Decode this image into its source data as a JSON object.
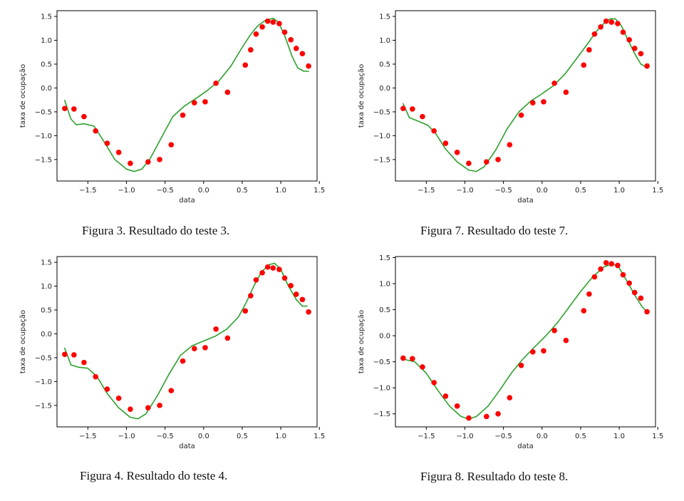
{
  "chart_data": [
    {
      "id": "fig3",
      "type": "scatter",
      "title": "",
      "xlabel": "data",
      "ylabel": "taxa de ocupação",
      "xlim": [
        -1.9,
        1.47
      ],
      "ylim": [
        -1.95,
        1.62
      ],
      "xticks": [
        -1.5,
        -1.0,
        -0.5,
        0.0,
        0.5,
        1.0,
        1.5
      ],
      "xtick_labels": [
        "−1.5",
        "−1.0",
        "−0.5",
        "0.0",
        "0.5",
        "1.0",
        "1.5"
      ],
      "yticks": [
        -1.5,
        -1.0,
        -0.5,
        0.0,
        0.5,
        1.0,
        1.5
      ],
      "ytick_labels": [
        "−1.5",
        "−1.0",
        "−0.5",
        "0.0",
        "0.5",
        "1.0",
        "1.5"
      ],
      "grid": false,
      "series": [
        {
          "kind": "points",
          "color": "#ff0000",
          "x": [
            -1.8,
            -1.68,
            -1.55,
            -1.4,
            -1.25,
            -1.1,
            -0.95,
            -0.72,
            -0.57,
            -0.42,
            -0.27,
            -0.12,
            0.02,
            0.16,
            0.31,
            0.54,
            0.61,
            0.68,
            0.76,
            0.83,
            0.9,
            0.98,
            1.05,
            1.13,
            1.2,
            1.28,
            1.36
          ],
          "y": [
            -0.43,
            -0.44,
            -0.6,
            -0.9,
            -1.16,
            -1.35,
            -1.58,
            -1.55,
            -1.5,
            -1.19,
            -0.57,
            -0.31,
            -0.29,
            0.1,
            -0.09,
            0.48,
            0.8,
            1.13,
            1.28,
            1.4,
            1.38,
            1.35,
            1.17,
            1.01,
            0.83,
            0.72,
            0.46
          ]
        },
        {
          "kind": "line",
          "color": "#2ca02c",
          "x": [
            -1.8,
            -1.72,
            -1.65,
            -1.55,
            -1.42,
            -1.3,
            -1.15,
            -1.0,
            -0.9,
            -0.8,
            -0.7,
            -0.55,
            -0.4,
            -0.25,
            -0.1,
            0.05,
            0.2,
            0.35,
            0.5,
            0.6,
            0.7,
            0.8,
            0.9,
            0.97,
            1.05,
            1.15,
            1.22,
            1.3,
            1.36
          ],
          "y": [
            -0.26,
            -0.65,
            -0.77,
            -0.75,
            -0.8,
            -1.1,
            -1.5,
            -1.7,
            -1.75,
            -1.7,
            -1.5,
            -1.05,
            -0.6,
            -0.38,
            -0.22,
            -0.05,
            0.15,
            0.45,
            0.85,
            1.1,
            1.3,
            1.42,
            1.46,
            1.38,
            1.1,
            0.65,
            0.42,
            0.35,
            0.35
          ]
        }
      ]
    },
    {
      "id": "fig7",
      "type": "scatter",
      "title": "",
      "xlabel": "data",
      "ylabel": "taxa de ocupação",
      "xlim": [
        -1.9,
        1.47
      ],
      "ylim": [
        -1.95,
        1.62
      ],
      "xticks": [
        -1.5,
        -1.0,
        -0.5,
        0.0,
        0.5,
        1.0,
        1.5
      ],
      "xtick_labels": [
        "−1.5",
        "−1.0",
        "−0.5",
        "0.0",
        "0.5",
        "1.0",
        "1.5"
      ],
      "yticks": [
        -1.5,
        -1.0,
        -0.5,
        0.0,
        0.5,
        1.0,
        1.5
      ],
      "ytick_labels": [
        "−1.5",
        "−1.0",
        "−0.5",
        "0.0",
        "0.5",
        "1.0",
        "1.5"
      ],
      "grid": false,
      "series": [
        {
          "kind": "points",
          "color": "#ff0000",
          "x": [
            -1.8,
            -1.68,
            -1.55,
            -1.4,
            -1.25,
            -1.1,
            -0.95,
            -0.72,
            -0.57,
            -0.42,
            -0.27,
            -0.12,
            0.02,
            0.16,
            0.31,
            0.54,
            0.61,
            0.68,
            0.76,
            0.83,
            0.9,
            0.98,
            1.05,
            1.13,
            1.2,
            1.28,
            1.36
          ],
          "y": [
            -0.43,
            -0.44,
            -0.6,
            -0.9,
            -1.16,
            -1.35,
            -1.58,
            -1.55,
            -1.5,
            -1.19,
            -0.57,
            -0.31,
            -0.29,
            0.1,
            -0.09,
            0.48,
            0.8,
            1.13,
            1.28,
            1.4,
            1.38,
            1.35,
            1.17,
            1.01,
            0.83,
            0.72,
            0.46
          ]
        },
        {
          "kind": "line",
          "color": "#2ca02c",
          "x": [
            -1.8,
            -1.72,
            -1.6,
            -1.48,
            -1.38,
            -1.25,
            -1.1,
            -0.95,
            -0.85,
            -0.75,
            -0.6,
            -0.45,
            -0.3,
            -0.15,
            0.0,
            0.15,
            0.3,
            0.45,
            0.6,
            0.7,
            0.8,
            0.88,
            0.95,
            1.03,
            1.1,
            1.2,
            1.28,
            1.34,
            1.38
          ],
          "y": [
            -0.33,
            -0.62,
            -0.7,
            -0.78,
            -0.95,
            -1.28,
            -1.55,
            -1.72,
            -1.75,
            -1.65,
            -1.3,
            -0.85,
            -0.5,
            -0.28,
            -0.12,
            0.05,
            0.3,
            0.62,
            0.95,
            1.18,
            1.35,
            1.45,
            1.45,
            1.3,
            1.05,
            0.72,
            0.5,
            0.45,
            0.5
          ]
        }
      ]
    },
    {
      "id": "fig4",
      "type": "scatter",
      "title": "",
      "xlabel": "data",
      "ylabel": "taxa de ocupação",
      "xlim": [
        -1.9,
        1.47
      ],
      "ylim": [
        -1.95,
        1.62
      ],
      "xticks": [
        -1.5,
        -1.0,
        -0.5,
        0.0,
        0.5,
        1.0,
        1.5
      ],
      "xtick_labels": [
        "−1.5",
        "−1.0",
        "−0.5",
        "0.0",
        "0.5",
        "1.0",
        "1.5"
      ],
      "yticks": [
        -1.5,
        -1.0,
        -0.5,
        0.0,
        0.5,
        1.0,
        1.5
      ],
      "ytick_labels": [
        "−1.5",
        "−1.0",
        "−0.5",
        "0.0",
        "0.5",
        "1.0",
        "1.5"
      ],
      "grid": false,
      "series": [
        {
          "kind": "points",
          "color": "#ff0000",
          "x": [
            -1.8,
            -1.68,
            -1.55,
            -1.4,
            -1.25,
            -1.1,
            -0.95,
            -0.72,
            -0.57,
            -0.42,
            -0.27,
            -0.12,
            0.02,
            0.16,
            0.31,
            0.54,
            0.61,
            0.68,
            0.76,
            0.83,
            0.9,
            0.98,
            1.05,
            1.13,
            1.2,
            1.28,
            1.36
          ],
          "y": [
            -0.43,
            -0.44,
            -0.6,
            -0.9,
            -1.16,
            -1.35,
            -1.58,
            -1.55,
            -1.5,
            -1.19,
            -0.57,
            -0.31,
            -0.29,
            0.1,
            -0.09,
            0.48,
            0.8,
            1.13,
            1.28,
            1.4,
            1.38,
            1.35,
            1.17,
            1.01,
            0.83,
            0.72,
            0.46
          ]
        },
        {
          "kind": "line",
          "color": "#2ca02c",
          "x": [
            -1.8,
            -1.72,
            -1.62,
            -1.5,
            -1.38,
            -1.25,
            -1.1,
            -0.95,
            -0.85,
            -0.75,
            -0.6,
            -0.45,
            -0.3,
            -0.15,
            0.0,
            0.15,
            0.3,
            0.45,
            0.55,
            0.65,
            0.75,
            0.85,
            0.92,
            1.0,
            1.1,
            1.2,
            1.28,
            1.34
          ],
          "y": [
            -0.3,
            -0.65,
            -0.7,
            -0.72,
            -0.9,
            -1.25,
            -1.55,
            -1.75,
            -1.78,
            -1.68,
            -1.3,
            -0.85,
            -0.45,
            -0.25,
            -0.15,
            -0.05,
            0.1,
            0.35,
            0.65,
            1.0,
            1.3,
            1.45,
            1.48,
            1.35,
            1.0,
            0.72,
            0.58,
            0.58
          ]
        }
      ]
    },
    {
      "id": "fig8",
      "type": "scatter",
      "title": "",
      "xlabel": "data",
      "ylabel": "taxa de ocupação",
      "xlim": [
        -1.9,
        1.47
      ],
      "ylim": [
        -1.75,
        1.52
      ],
      "xticks": [
        -1.5,
        -1.0,
        -0.5,
        0.0,
        0.5,
        1.0,
        1.5
      ],
      "xtick_labels": [
        "−1.5",
        "−1.0",
        "−0.5",
        "0.0",
        "0.5",
        "1.0",
        "1.5"
      ],
      "yticks": [
        -1.5,
        -1.0,
        -0.5,
        0.0,
        0.5,
        1.0,
        1.5
      ],
      "ytick_labels": [
        "−1.5",
        "−1.0",
        "−0.5",
        "0.0",
        "0.5",
        "1.0",
        "1.5"
      ],
      "grid": false,
      "series": [
        {
          "kind": "points",
          "color": "#ff0000",
          "x": [
            -1.8,
            -1.68,
            -1.55,
            -1.4,
            -1.25,
            -1.1,
            -0.95,
            -0.72,
            -0.57,
            -0.42,
            -0.27,
            -0.12,
            0.02,
            0.16,
            0.31,
            0.54,
            0.61,
            0.68,
            0.76,
            0.83,
            0.9,
            0.98,
            1.05,
            1.13,
            1.2,
            1.28,
            1.36
          ],
          "y": [
            -0.43,
            -0.44,
            -0.6,
            -0.9,
            -1.16,
            -1.35,
            -1.58,
            -1.55,
            -1.5,
            -1.19,
            -0.57,
            -0.31,
            -0.29,
            0.1,
            -0.09,
            0.48,
            0.8,
            1.13,
            1.28,
            1.4,
            1.38,
            1.35,
            1.17,
            1.01,
            0.83,
            0.72,
            0.46
          ]
        },
        {
          "kind": "line",
          "color": "#2ca02c",
          "x": [
            -1.8,
            -1.65,
            -1.5,
            -1.35,
            -1.2,
            -1.05,
            -0.95,
            -0.85,
            -0.7,
            -0.55,
            -0.4,
            -0.25,
            -0.1,
            0.05,
            0.2,
            0.35,
            0.5,
            0.65,
            0.8,
            0.92,
            1.0,
            1.1,
            1.2,
            1.3,
            1.37
          ],
          "y": [
            -0.45,
            -0.5,
            -0.72,
            -1.05,
            -1.35,
            -1.55,
            -1.6,
            -1.55,
            -1.35,
            -1.05,
            -0.72,
            -0.45,
            -0.22,
            0.0,
            0.25,
            0.55,
            0.85,
            1.12,
            1.32,
            1.38,
            1.3,
            1.05,
            0.78,
            0.55,
            0.45
          ]
        }
      ]
    }
  ],
  "captions": {
    "fig3": "Figura 3. Resultado do teste 3.",
    "fig7": "Figura 7. Resultado do teste 7.",
    "fig4": "Figura 4. Resultado do teste 4.",
    "fig8": "Figura 8. Resultado do teste 8."
  }
}
